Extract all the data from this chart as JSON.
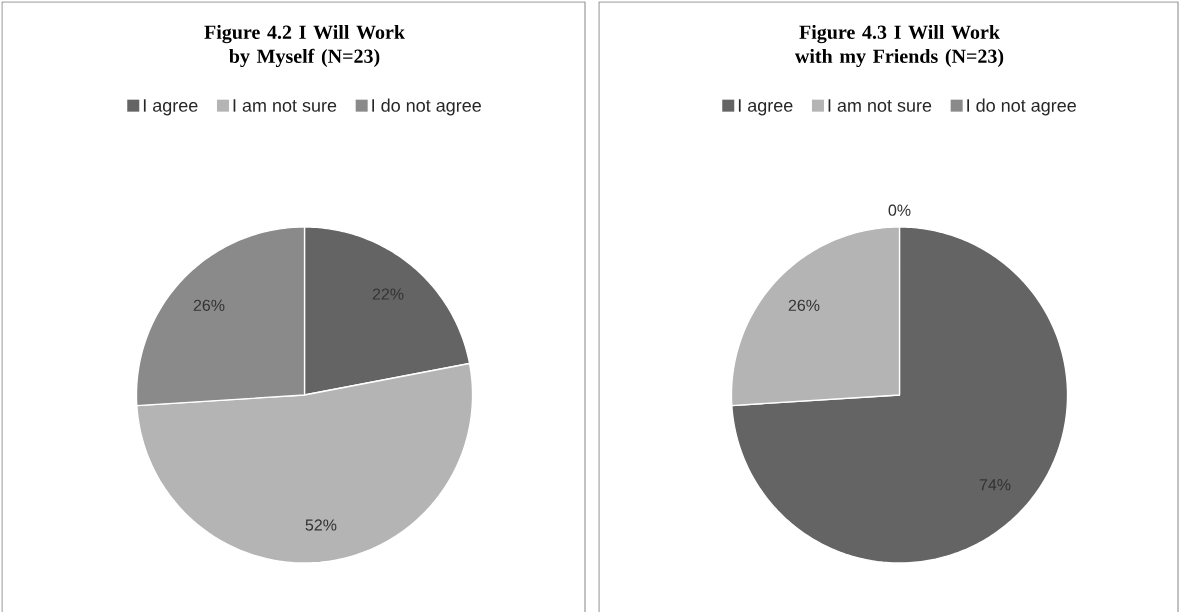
{
  "chart_data": [
    {
      "type": "pie",
      "title": "Figure 4.2 I Will Work by Myself (N=23)",
      "categories": [
        "I agree",
        "I am not sure",
        "I do not agree"
      ],
      "values": [
        22,
        52,
        26
      ],
      "colors": [
        "#646464",
        "#b4b4b4",
        "#8a8a8a"
      ],
      "value_labels": [
        "22%",
        "52%",
        "26%"
      ],
      "legend": "top"
    },
    {
      "type": "pie",
      "title": "Figure 4.3 I Will Work with my Friends (N=23)",
      "categories": [
        "I agree",
        "I am not sure",
        "I do not agree"
      ],
      "values": [
        74,
        26,
        0
      ],
      "colors": [
        "#646464",
        "#b4b4b4",
        "#8a8a8a"
      ],
      "value_labels": [
        "74%",
        "26%",
        "0%"
      ],
      "legend": "top"
    }
  ]
}
